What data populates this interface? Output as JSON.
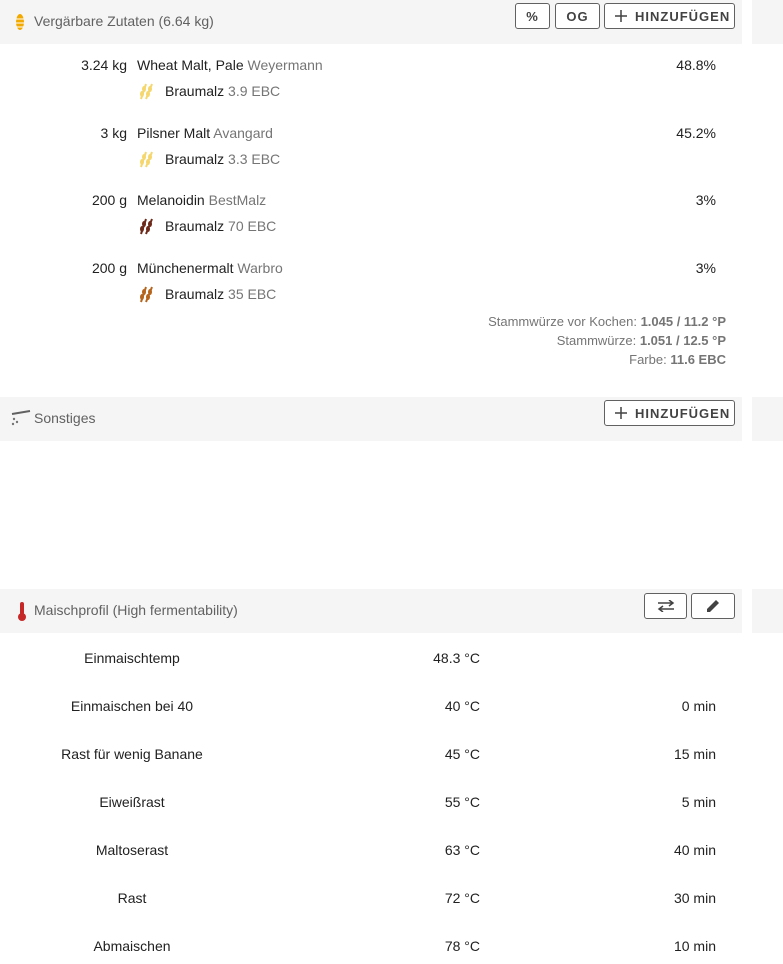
{
  "fermentables": {
    "title": "Vergärbare Zutaten (6.64 kg)",
    "buttons": [
      "%",
      "OG",
      "HINZUFÜGEN"
    ],
    "items": [
      {
        "amount": "3.24 kg",
        "name": "Wheat Malt, Pale",
        "supplier": "Weyermann",
        "type": "Braumalz",
        "color": "3.9 EBC",
        "percent": "48.8%"
      },
      {
        "amount": "3 kg",
        "name": "Pilsner Malt",
        "supplier": "Avangard",
        "type": "Braumalz",
        "color": "3.3 EBC",
        "percent": "45.2%"
      },
      {
        "amount": "200 g",
        "name": "Melanoidin",
        "supplier": "BestMalz",
        "type": "Braumalz",
        "color": "70 EBC",
        "percent": "3%"
      },
      {
        "amount": "200 g",
        "name": "Münchenermalt",
        "supplier": "Warbro",
        "type": "Braumalz",
        "color": "35 EBC",
        "percent": "3%"
      }
    ],
    "stats": [
      {
        "label": "Stammwürze vor Kochen:",
        "value": "1.045 / 11.2 °P"
      },
      {
        "label": "Stammwürze:",
        "value": "1.051 / 12.5 °P"
      },
      {
        "label": "Farbe:",
        "value": "11.6 EBC"
      }
    ]
  },
  "misc": {
    "title": "Sonstiges",
    "button": "HINZUFÜGEN"
  },
  "mash": {
    "title": "Maischprofil (High fermentability)",
    "steps": [
      {
        "name": "Einmaischtemp",
        "temp": "48.3 °C"
      },
      {
        "name": "Einmaischen bei 40",
        "temp": "40 °C",
        "time": "0 min"
      },
      {
        "name": "Rast für wenig Banane",
        "temp": "45 °C",
        "time": "15 min"
      },
      {
        "name": "Eiweißrast",
        "temp": "55 °C",
        "time": "5 min"
      },
      {
        "name": "Maltoserast",
        "temp": "63 °C",
        "time": "40 min"
      },
      {
        "name": "Rast",
        "temp": "72 °C",
        "time": "30 min"
      },
      {
        "name": "Abmaischen",
        "temp": "78 °C",
        "time": "10 min"
      }
    ]
  }
}
